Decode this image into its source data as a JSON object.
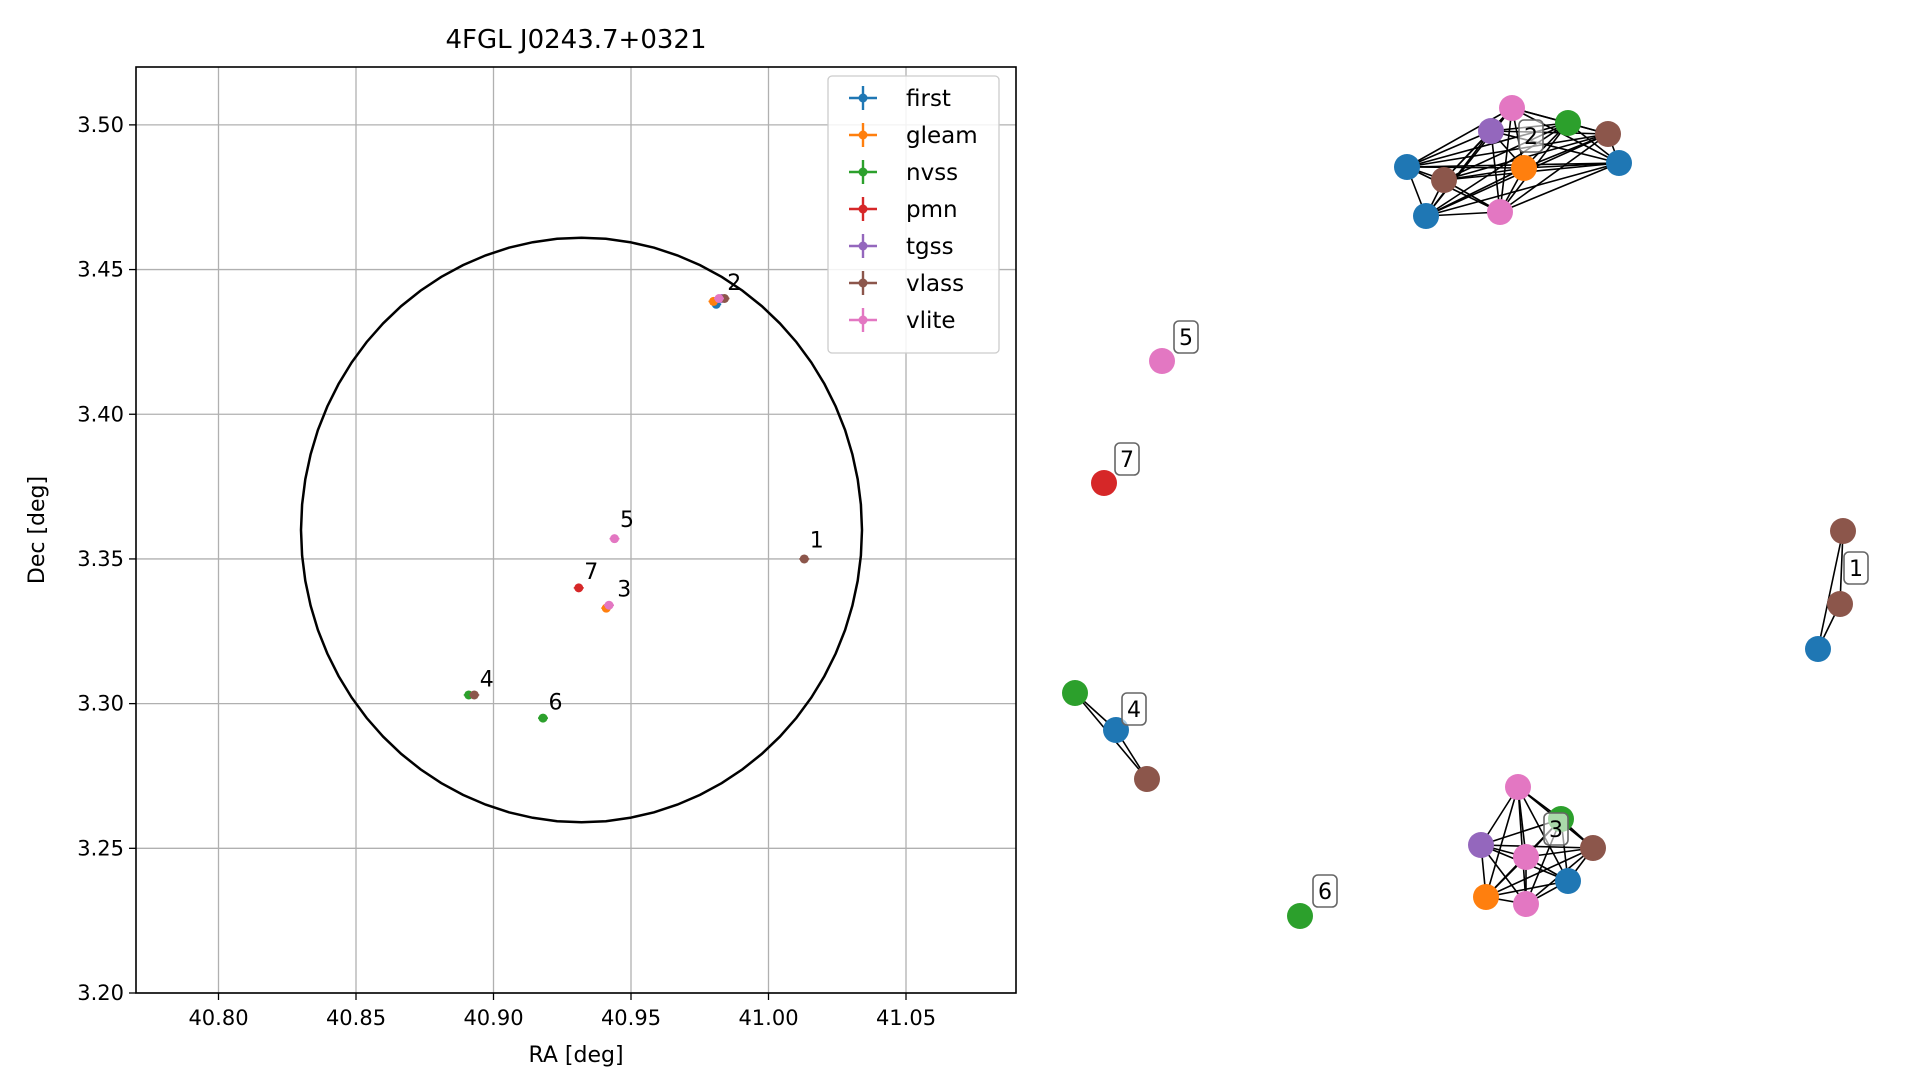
{
  "chart_data": [
    {
      "type": "scatter",
      "title": "4FGL J0243.7+0321",
      "xlabel": "RA [deg]",
      "ylabel": "Dec [deg]",
      "xlim": [
        40.77,
        41.09
      ],
      "ylim": [
        3.2,
        3.52
      ],
      "xticks": [
        40.8,
        40.85,
        40.9,
        40.95,
        41.0,
        41.05
      ],
      "xtick_labels": [
        "40.80",
        "40.85",
        "40.90",
        "40.95",
        "41.00",
        "41.05"
      ],
      "yticks": [
        3.2,
        3.25,
        3.3,
        3.35,
        3.4,
        3.45,
        3.5
      ],
      "ytick_labels": [
        "3.20",
        "3.25",
        "3.30",
        "3.35",
        "3.40",
        "3.45",
        "3.50"
      ],
      "grid": true,
      "legend_position": "top-right",
      "error_circle": {
        "center": [
          40.932,
          3.36
        ],
        "radius_ra": 0.102,
        "radius_dec": 0.101
      },
      "series": [
        {
          "name": "first",
          "color": "#1f77b4",
          "points": [
            [
              40.981,
              3.438
            ]
          ]
        },
        {
          "name": "gleam",
          "color": "#ff7f0e",
          "points": [
            [
              40.98,
              3.439
            ],
            [
              40.941,
              3.333
            ]
          ]
        },
        {
          "name": "nvss",
          "color": "#2ca02c",
          "points": [
            [
              40.891,
              3.303
            ],
            [
              40.918,
              3.295
            ]
          ]
        },
        {
          "name": "pmn",
          "color": "#d62728",
          "points": [
            [
              40.931,
              3.34
            ]
          ]
        },
        {
          "name": "tgss",
          "color": "#9467bd",
          "points": [
            [
              40.983,
              3.44
            ]
          ]
        },
        {
          "name": "vlass",
          "color": "#8c564b",
          "points": [
            [
              41.013,
              3.35
            ],
            [
              40.893,
              3.303
            ],
            [
              40.984,
              3.44
            ]
          ]
        },
        {
          "name": "vlite",
          "color": "#e377c2",
          "points": [
            [
              40.944,
              3.357
            ],
            [
              40.942,
              3.334
            ],
            [
              40.982,
              3.44
            ]
          ]
        }
      ],
      "labels": [
        {
          "text": "1",
          "at": [
            41.015,
            3.354
          ]
        },
        {
          "text": "2",
          "at": [
            40.985,
            3.443
          ]
        },
        {
          "text": "3",
          "at": [
            40.945,
            3.337
          ]
        },
        {
          "text": "4",
          "at": [
            40.895,
            3.306
          ]
        },
        {
          "text": "5",
          "at": [
            40.946,
            3.361
          ]
        },
        {
          "text": "6",
          "at": [
            40.92,
            3.298
          ]
        },
        {
          "text": "7",
          "at": [
            40.933,
            3.343
          ]
        }
      ]
    },
    {
      "type": "network",
      "groups": [
        {
          "label": "1",
          "nodes": [
            {
              "id": "1a",
              "color": "vlass"
            },
            {
              "id": "1b",
              "color": "vlass"
            },
            {
              "id": "1c",
              "color": "first"
            }
          ],
          "edges": [
            [
              "1a",
              "1b"
            ],
            [
              "1b",
              "1c"
            ],
            [
              "1a",
              "1c"
            ]
          ]
        },
        {
          "label": "2",
          "nodes": [
            {
              "id": "2a",
              "color": "vlite"
            },
            {
              "id": "2b",
              "color": "nvss"
            },
            {
              "id": "2c",
              "color": "tgss"
            },
            {
              "id": "2d",
              "color": "vlass"
            },
            {
              "id": "2e",
              "color": "first"
            },
            {
              "id": "2f",
              "color": "gleam"
            },
            {
              "id": "2g",
              "color": "first"
            },
            {
              "id": "2h",
              "color": "vlass"
            },
            {
              "id": "2i",
              "color": "first"
            },
            {
              "id": "2j",
              "color": "vlite"
            }
          ],
          "complete": true
        },
        {
          "label": "3",
          "nodes": [
            {
              "id": "3a",
              "color": "vlite"
            },
            {
              "id": "3b",
              "color": "nvss"
            },
            {
              "id": "3c",
              "color": "tgss"
            },
            {
              "id": "3d",
              "color": "vlite"
            },
            {
              "id": "3e",
              "color": "vlass"
            },
            {
              "id": "3f",
              "color": "first"
            },
            {
              "id": "3g",
              "color": "gleam"
            },
            {
              "id": "3h",
              "color": "vlite"
            }
          ],
          "complete": true
        },
        {
          "label": "4",
          "nodes": [
            {
              "id": "4a",
              "color": "nvss"
            },
            {
              "id": "4b",
              "color": "first"
            },
            {
              "id": "4c",
              "color": "vlass"
            }
          ],
          "edges": [
            [
              "4a",
              "4b"
            ],
            [
              "4b",
              "4c"
            ],
            [
              "4a",
              "4c"
            ]
          ]
        },
        {
          "label": "5",
          "nodes": [
            {
              "id": "5a",
              "color": "vlite"
            }
          ],
          "edges": []
        },
        {
          "label": "6",
          "nodes": [
            {
              "id": "6a",
              "color": "nvss"
            }
          ],
          "edges": []
        },
        {
          "label": "7",
          "nodes": [
            {
              "id": "7a",
              "color": "pmn"
            }
          ],
          "edges": []
        }
      ]
    }
  ]
}
